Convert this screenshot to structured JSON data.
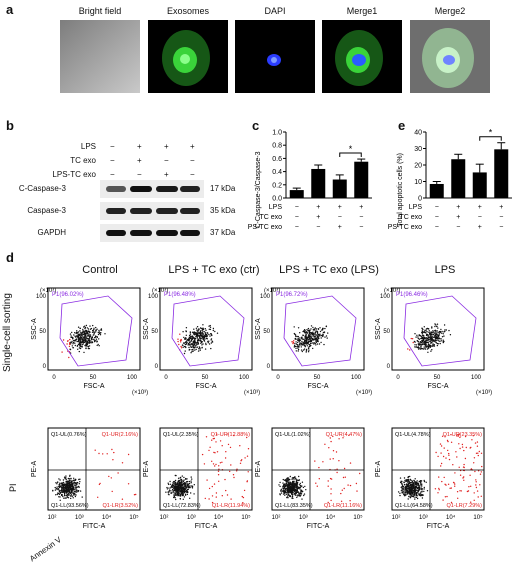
{
  "panel_a": {
    "letter": "a",
    "images": [
      "Bright field",
      "Exosomes",
      "DAPI",
      "Merge1",
      "Merge2"
    ]
  },
  "panel_b": {
    "letter": "b",
    "conditions": [
      {
        "label": "LPS",
        "marks": [
          "−",
          "+",
          "+",
          "+"
        ]
      },
      {
        "label": "TC exo",
        "marks": [
          "−",
          "+",
          "−",
          "−"
        ]
      },
      {
        "label": "LPS-TC exo",
        "marks": [
          "−",
          "−",
          "+",
          "−"
        ]
      }
    ],
    "blots": [
      {
        "name": "C-Caspase-3",
        "kda": "17 kDa"
      },
      {
        "name": "Caspase-3",
        "kda": "35 kDa"
      },
      {
        "name": "GAPDH",
        "kda": "37 kDa"
      }
    ]
  },
  "panel_c": {
    "letter": "c",
    "ylabel": "C-Caspase-3/Caspase-3",
    "yticks": [
      "0.0",
      "0.2",
      "0.4",
      "0.6",
      "0.8",
      "1.0"
    ],
    "rows": [
      {
        "label": "LPS",
        "marks": [
          "−",
          "+",
          "+",
          "+"
        ]
      },
      {
        "label": "TC exo",
        "marks": [
          "−",
          "+",
          "−",
          "−"
        ]
      },
      {
        "label": "LPS-TC exo",
        "marks": [
          "−",
          "−",
          "+",
          "−"
        ]
      }
    ],
    "sig": "*"
  },
  "panel_d": {
    "letter": "d",
    "row1_label": "Single-cell sorting",
    "row2_ylabel": "PI",
    "row2_xlabel": "Annexin V",
    "titles": [
      "Control",
      "LPS + TC exo (ctr)",
      "LPS + TC exo (LPS)",
      "LPS"
    ],
    "sorting": {
      "xlabel": "FSC-A",
      "ylabel": "SSC-A",
      "unit": "(×10³)",
      "ticks": [
        "0",
        "50",
        "100"
      ],
      "gates": [
        "P1(96.02%)",
        "P1(96.48%)",
        "P1(96.72%)",
        "P1(96.46%)"
      ]
    },
    "apoptosis": {
      "xlabel": "FITC-A",
      "ylabel": "PE-A",
      "xticks": [
        "10²",
        "10³",
        "10⁴",
        "10⁵"
      ],
      "quadrants": [
        {
          "ul": "Q1-UL(0.76%)",
          "ur": "Q1-UR(2.16%)",
          "ll": "Q1-LL(93.56%)",
          "lr": "Q1-LR(3.52%)"
        },
        {
          "ul": "Q1-UL(2.35%)",
          "ur": "Q1-UR(12.88%)",
          "ll": "Q1-LL(72.83%)",
          "lr": "Q1-LR(11.94%)"
        },
        {
          "ul": "Q1-UL(1.02%)",
          "ur": "Q1-UR(4.47%)",
          "ll": "Q1-LL(83.35%)",
          "lr": "Q1-LR(11.16%)"
        },
        {
          "ul": "Q1-UL(4.78%)",
          "ur": "Q1-UR(23.35%)",
          "ll": "Q1-LL(64.58%)",
          "lr": "Q1-LR(7.29%)"
        }
      ]
    }
  },
  "panel_e": {
    "letter": "e",
    "ylabel": "Total apoptotic cells (%)",
    "yticks": [
      "0",
      "10",
      "20",
      "30",
      "40"
    ],
    "rows": [
      {
        "label": "LPS",
        "marks": [
          "−",
          "+",
          "+",
          "+"
        ]
      },
      {
        "label": "TC exo",
        "marks": [
          "−",
          "+",
          "−",
          "−"
        ]
      },
      {
        "label": "LPS-TC exo",
        "marks": [
          "−",
          "−",
          "+",
          "−"
        ]
      }
    ],
    "sig": "*"
  },
  "chart_data": [
    {
      "type": "bar",
      "categories": [
        "Control",
        "LPS+TC exo",
        "LPS+LPS-TC exo",
        "LPS"
      ],
      "values": [
        0.12,
        0.44,
        0.28,
        0.55
      ],
      "errors": [
        0.03,
        0.06,
        0.07,
        0.04
      ],
      "ylabel": "C-Caspase-3/Caspase-3",
      "ylim": [
        0,
        1.0
      ]
    },
    {
      "type": "bar",
      "categories": [
        "Control",
        "LPS+TC exo",
        "LPS+LPS-TC exo",
        "LPS"
      ],
      "values": [
        8.5,
        23.5,
        15.5,
        29.5
      ],
      "errors": [
        1.5,
        3.0,
        5.0,
        4.0
      ],
      "ylabel": "Total apoptotic cells (%)",
      "ylim": [
        0,
        40
      ]
    }
  ]
}
